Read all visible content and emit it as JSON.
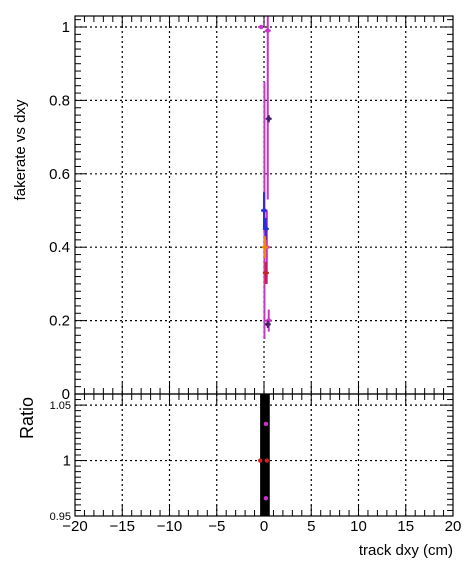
{
  "chart_data": [
    {
      "type": "scatter",
      "title": "",
      "xlabel": "track dxy (cm)",
      "ylabel": "fakerate vs dxy",
      "xlim": [
        -20,
        20
      ],
      "ylim": [
        0,
        1.03
      ],
      "y_ticks": [
        0,
        0.2,
        0.4,
        0.6,
        0.8,
        1
      ],
      "y_tick_labels": [
        "0",
        "0.2",
        "0.4",
        "0.6",
        "0.8",
        "1"
      ],
      "grid": true,
      "series": [
        {
          "color": "#cc33cc",
          "points": [
            {
              "x": -0.3,
              "y": 1.0,
              "ylo": 1.0,
              "yhi": 1.0
            },
            {
              "x": 0.4,
              "y": 0.99,
              "ylo": 0.53,
              "yhi": 1.03
            },
            {
              "x": 0.05,
              "y": 0.5,
              "ylo": 0.15,
              "yhi": 0.85
            },
            {
              "x": 0.3,
              "y": 0.4,
              "ylo": 0.3,
              "yhi": 0.5
            },
            {
              "x": 0.5,
              "y": 0.2,
              "ylo": 0.17,
              "yhi": 0.23
            }
          ]
        },
        {
          "color": "#2233dd",
          "points": [
            {
              "x": 0.0,
              "y": 0.5,
              "ylo": 0.45,
              "yhi": 0.55
            },
            {
              "x": 0.2,
              "y": 0.45,
              "ylo": 0.42,
              "yhi": 0.48
            }
          ]
        },
        {
          "color": "#ee8800",
          "points": [
            {
              "x": 0.1,
              "y": 0.4,
              "ylo": 0.37,
              "yhi": 0.43
            }
          ]
        },
        {
          "color": "#cc2222",
          "points": [
            {
              "x": 0.2,
              "y": 0.33,
              "ylo": 0.3,
              "yhi": 0.36
            }
          ]
        },
        {
          "color": "#442266",
          "points": [
            {
              "x": 0.5,
              "y": 0.75,
              "ylo": 0.74,
              "yhi": 0.76
            },
            {
              "x": 0.4,
              "y": 0.19,
              "ylo": 0.18,
              "yhi": 0.2
            }
          ]
        }
      ]
    },
    {
      "type": "scatter",
      "xlabel": "track dxy (cm)",
      "ylabel": "Ratio",
      "xlim": [
        -20,
        20
      ],
      "ylim": [
        0.95,
        1.06
      ],
      "x_ticks": [
        -20,
        -15,
        -10,
        -5,
        0,
        5,
        10,
        15,
        20
      ],
      "x_tick_labels": [
        "−20",
        "−15",
        "−10",
        "−5",
        "0",
        "5",
        "10",
        "15",
        "20"
      ],
      "y_ticks": [
        0.95,
        1,
        1.05
      ],
      "y_tick_labels": [
        "0.95",
        "1",
        "1.05"
      ],
      "grid": true,
      "band": {
        "xlo": -0.2,
        "xhi": 0.4,
        "color": "#000000"
      },
      "series": [
        {
          "color": "#cc2222",
          "points": [
            {
              "x": -0.4,
              "y": 1.0
            },
            {
              "x": 0.3,
              "y": 1.0
            }
          ]
        },
        {
          "color": "#cc33cc",
          "points": [
            {
              "x": 0.2,
              "y": 1.033
            },
            {
              "x": 0.2,
              "y": 0.966
            }
          ]
        }
      ]
    }
  ]
}
